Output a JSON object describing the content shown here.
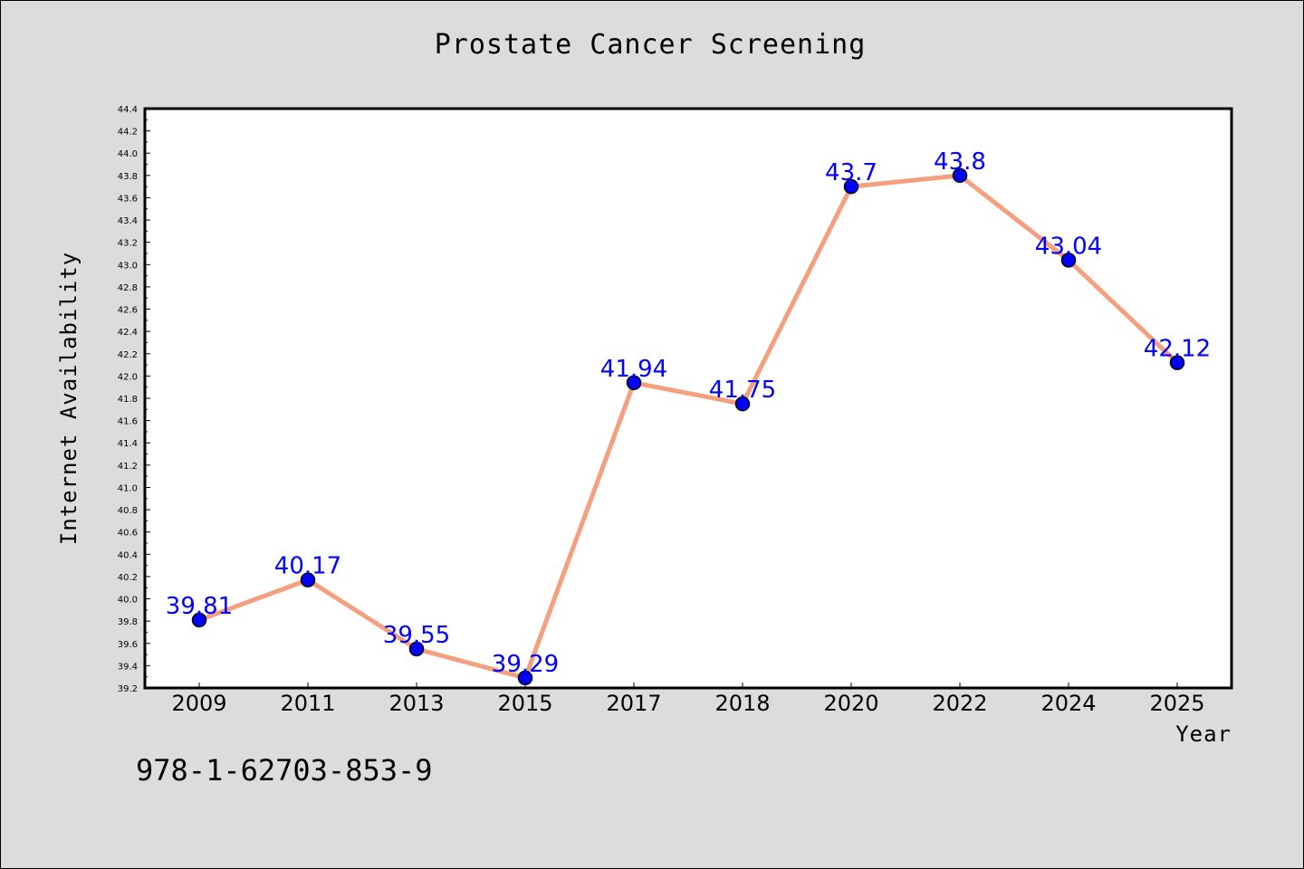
{
  "chart_data": {
    "type": "line",
    "title": "Prostate Cancer Screening",
    "xlabel": "Year",
    "ylabel": "Internet Availability",
    "categories": [
      "2009",
      "2011",
      "2013",
      "2015",
      "2017",
      "2018",
      "2020",
      "2022",
      "2024",
      "2025"
    ],
    "series": [
      {
        "values": [
          39.81,
          40.17,
          39.55,
          39.29,
          41.94,
          41.75,
          43.7,
          43.8,
          43.04,
          42.12
        ],
        "data_labels": [
          "39.81",
          "40.17",
          "39.55",
          "39.29",
          "41.94",
          "41.75",
          "43.7",
          "43.8",
          "43.04",
          "42.12"
        ]
      }
    ],
    "ylim": [
      39.2,
      44.4
    ],
    "yticks": [
      "39.2",
      "39.4",
      "39.6",
      "39.8",
      "40.0",
      "40.2",
      "40.4",
      "40.6",
      "40.8",
      "41.0",
      "41.2",
      "41.4",
      "41.6",
      "41.8",
      "42.0",
      "42.2",
      "42.4",
      "42.6",
      "42.8",
      "43.0",
      "43.2",
      "43.4",
      "43.6",
      "43.8",
      "44.0",
      "44.2",
      "44.4"
    ],
    "grid": false,
    "colors": {
      "line": "#f4a07e",
      "marker": "#0000ff",
      "marker_edge": "#000000",
      "data_label": "#0000ff",
      "plot_background": "#ffffff",
      "figure_background": "#dcdcdc"
    }
  },
  "footer_text": "978-1-62703-853-9"
}
